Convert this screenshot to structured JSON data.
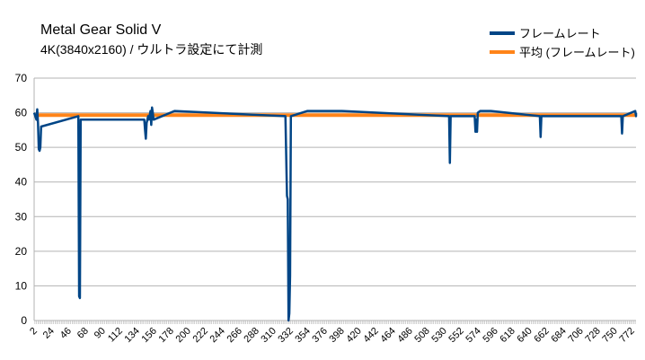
{
  "chart_data": {
    "type": "line",
    "title": "Metal Gear Solid V",
    "subtitle": "4K(3840x2160) / ウルトラ設定にて計測",
    "xlabel": "",
    "ylabel": "",
    "ylim": [
      0,
      70
    ],
    "yticks": [
      0,
      10,
      20,
      30,
      40,
      50,
      60,
      70
    ],
    "xlim": [
      1,
      777
    ],
    "xticks": [
      2,
      24,
      46,
      68,
      90,
      112,
      134,
      156,
      178,
      200,
      222,
      244,
      266,
      288,
      310,
      332,
      354,
      376,
      398,
      420,
      442,
      464,
      486,
      508,
      530,
      552,
      574,
      596,
      618,
      640,
      662,
      684,
      706,
      728,
      750,
      772
    ],
    "grid": "horizontal",
    "legend_position": "top-right",
    "series": [
      {
        "name": "フレームレート",
        "color": "#004586",
        "baseline": 60,
        "dips": [
          [
            4,
            58
          ],
          [
            5,
            61
          ],
          [
            6,
            57
          ],
          [
            7,
            49.5
          ],
          [
            8,
            49
          ],
          [
            9,
            50
          ],
          [
            10,
            56
          ],
          [
            58,
            59
          ],
          [
            59,
            7
          ],
          [
            60,
            6.5
          ],
          [
            61,
            58
          ],
          [
            143,
            58
          ],
          [
            144,
            55
          ],
          [
            145,
            52.5
          ],
          [
            146,
            57
          ],
          [
            148,
            59
          ],
          [
            149,
            58
          ],
          [
            151,
            60.5
          ],
          [
            152,
            56.5
          ],
          [
            153,
            61.5
          ],
          [
            154,
            60
          ],
          [
            155,
            58
          ],
          [
            182,
            60.5
          ],
          [
            325,
            59
          ],
          [
            327,
            36
          ],
          [
            328,
            35
          ],
          [
            329,
            0
          ],
          [
            330,
            2
          ],
          [
            331,
            13
          ],
          [
            332,
            59
          ],
          [
            353,
            60.5
          ],
          [
            384,
            60.5
          ],
          [
            398,
            60.5
          ],
          [
            536,
            59
          ],
          [
            537,
            45.5
          ],
          [
            538,
            59
          ],
          [
            569,
            59
          ],
          [
            570,
            54.5
          ],
          [
            571,
            58
          ],
          [
            572,
            54.5
          ],
          [
            573,
            60
          ],
          [
            576,
            60.5
          ],
          [
            585,
            60.5
          ],
          [
            590,
            60.5
          ],
          [
            653,
            59
          ],
          [
            654,
            53
          ],
          [
            655,
            59
          ],
          [
            758,
            59
          ],
          [
            759,
            54
          ],
          [
            760,
            59
          ],
          [
            776,
            60.5
          ],
          [
            777,
            59
          ]
        ]
      },
      {
        "name": "平均 (フレームレート)",
        "color": "#ff8419",
        "constant": 59.3
      }
    ]
  }
}
